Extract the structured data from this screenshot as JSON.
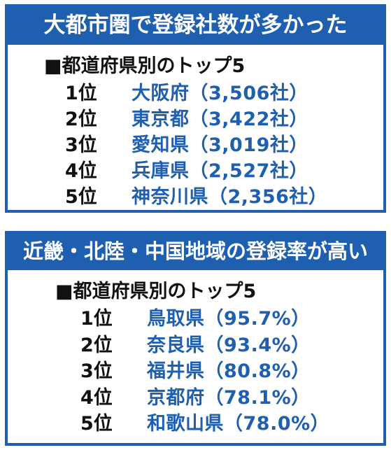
{
  "panels": [
    {
      "title": "大都市圏で登録社数が多かった",
      "subtitle": "■都道府県別のトップ5",
      "rows": [
        {
          "rank": "1位",
          "entry": "大阪府（3,506社）"
        },
        {
          "rank": "2位",
          "entry": "東京都（3,422社）"
        },
        {
          "rank": "3位",
          "entry": "愛知県（3,019社）"
        },
        {
          "rank": "4位",
          "entry": "兵庫県（2,527社）"
        },
        {
          "rank": "5位",
          "entry": "神奈川県（2,356社）"
        }
      ]
    },
    {
      "title": "近畿・北陸・中国地域の登録率が高い",
      "subtitle": "■都道府県別のトップ5",
      "rows": [
        {
          "rank": "1位",
          "entry": "鳥取県（95.7%）"
        },
        {
          "rank": "2位",
          "entry": "奈良県（93.4%）"
        },
        {
          "rank": "3位",
          "entry": "福井県（80.8%）"
        },
        {
          "rank": "4位",
          "entry": "京都府（78.1%）"
        },
        {
          "rank": "5位",
          "entry": "和歌山県（78.0%）"
        }
      ]
    }
  ],
  "colors": {
    "accent": "#1f5fb0",
    "text": "#111111",
    "header_text": "#ffffff"
  }
}
